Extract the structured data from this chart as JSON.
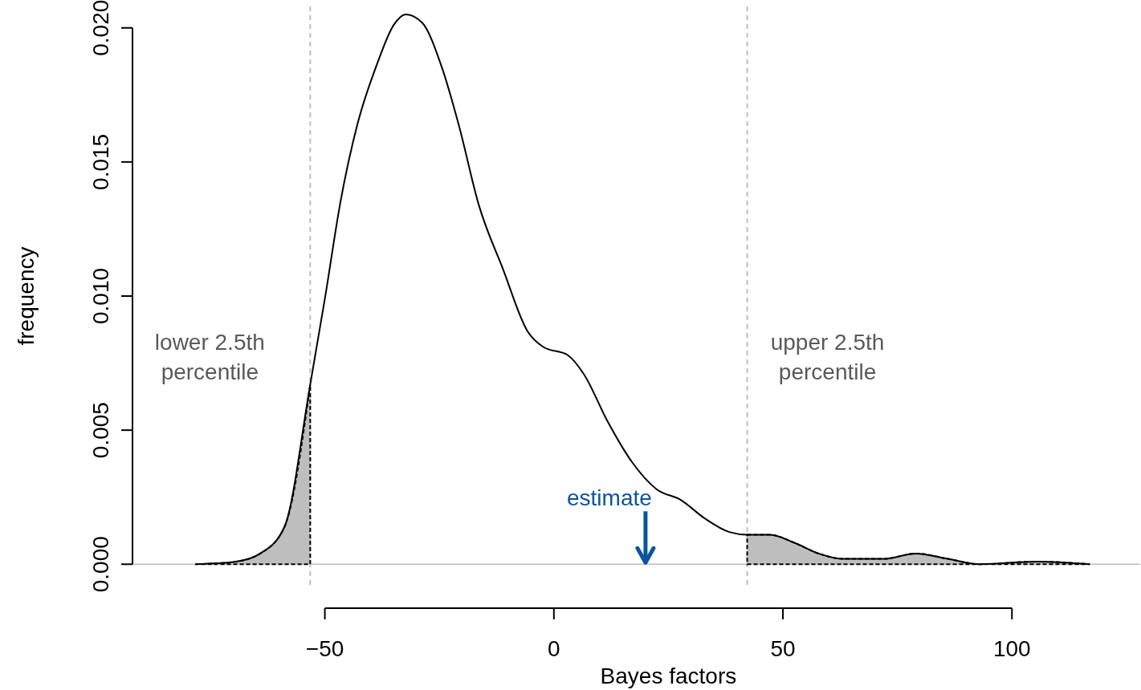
{
  "chart_data": {
    "type": "line",
    "xlabel": "Bayes factors",
    "ylabel": "frequency",
    "xlim": [
      -92,
      128
    ],
    "ylim": [
      -0.0008,
      0.0208
    ],
    "xticks": [
      {
        "value": -50,
        "label": "−50"
      },
      0,
      50,
      100
    ],
    "yticks": [
      {
        "value": 0,
        "label": "0.000"
      },
      {
        "value": 0.005,
        "label": "0.005"
      },
      {
        "value": 0.01,
        "label": "0.010"
      },
      {
        "value": 0.015,
        "label": "0.015"
      },
      {
        "value": 0.02,
        "label": "0.020"
      }
    ],
    "series": [
      {
        "type": "area",
        "color": "#bebebe",
        "x": [
          -78.3,
          -69.4,
          -64.1,
          -58.8,
          -53.2
        ],
        "values": [
          0,
          0.0001,
          0.0004,
          0.0014,
          0.0067
        ]
      },
      {
        "type": "area",
        "color": "#bebebe",
        "x": [
          42.2,
          47.2,
          52.5,
          57.8,
          63.1,
          72,
          79,
          86,
          93,
          105.5,
          117
        ],
        "values": [
          0.0011,
          0.0011,
          0.0008,
          0.0004,
          0.0002,
          0.0002,
          0.0004,
          0.0002,
          0,
          0.0001,
          0
        ]
      },
      {
        "color": "#000000",
        "line_style": "solid",
        "x": [
          -78.3,
          -69.4,
          -64.1,
          -58.8,
          -53.2,
          -50,
          -46.5,
          -42.9,
          -38.5,
          -35,
          -32.3,
          -28.8,
          -24.4,
          -20.8,
          -16.4,
          -11.1,
          -5.8,
          -2.3,
          3,
          6.5,
          11.8,
          17.1,
          22.4,
          27.7,
          33,
          38.3,
          42.2,
          47.2,
          52.5,
          57.8,
          63.1,
          72,
          79,
          86,
          93,
          105.5,
          117
        ],
        "values": [
          0,
          0.0001,
          0.0004,
          0.0014,
          0.0067,
          0.0099,
          0.0136,
          0.0164,
          0.0187,
          0.0201,
          0.0205,
          0.0202,
          0.0185,
          0.0164,
          0.0134,
          0.011,
          0.0087,
          0.0081,
          0.0078,
          0.0071,
          0.0053,
          0.0038,
          0.0028,
          0.0024,
          0.0017,
          0.0012,
          0.0011,
          0.0011,
          0.0008,
          0.0004,
          0.0002,
          0.0002,
          0.0004,
          0.0002,
          0,
          0.0001,
          0
        ]
      }
    ],
    "ref_lines": [
      {
        "axis": "y",
        "value": 0,
        "color": "#bebebe",
        "line_style": "solid"
      },
      {
        "axis": "x",
        "value": -53.2,
        "label": "lower 2.5th percentile",
        "color": "#bebebe",
        "line_style": "dashed"
      },
      {
        "axis": "x",
        "value": 42.2,
        "label": "upper 2.5th percentile",
        "color": "#bebebe",
        "line_style": "dashed"
      }
    ],
    "annotations": [
      {
        "text": "estimate",
        "x": 20,
        "y": 0
      }
    ]
  }
}
